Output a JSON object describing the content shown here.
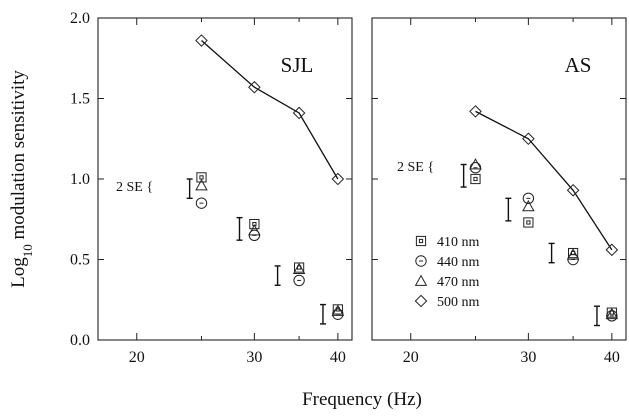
{
  "chart_data": [
    {
      "type": "scatter",
      "panel_label": "SJL",
      "xlabel": "Frequency (Hz)",
      "ylabel": "Log10 modulation sensitivity",
      "x_scale": "log",
      "xlim": [
        17.5,
        42
      ],
      "ylim": [
        0,
        2
      ],
      "x_ticks": [
        "20",
        "30",
        "40"
      ],
      "y_ticks": [
        "0.0",
        "0.5",
        "1.0",
        "1.5",
        "2.0"
      ],
      "se_label": "2 SE",
      "series": [
        {
          "name": "410 nm",
          "marker": "square",
          "x": [
            25,
            30,
            35,
            40
          ],
          "y": [
            1.01,
            0.72,
            0.45,
            0.19
          ]
        },
        {
          "name": "440 nm",
          "marker": "circle",
          "x": [
            25,
            30,
            35,
            40
          ],
          "y": [
            0.85,
            0.65,
            0.37,
            0.16
          ]
        },
        {
          "name": "470 nm",
          "marker": "triangle",
          "x": [
            25,
            30,
            35,
            40
          ],
          "y": [
            0.96,
            0.68,
            0.44,
            0.18
          ]
        },
        {
          "name": "500 nm",
          "marker": "diamond",
          "connected": true,
          "x": [
            25,
            30,
            35,
            40
          ],
          "y": [
            1.86,
            1.57,
            1.41,
            1.0
          ]
        }
      ],
      "error_bars": [
        {
          "x": 24,
          "low": 0.88,
          "high": 1.0
        },
        {
          "x": 28.5,
          "low": 0.62,
          "high": 0.76
        },
        {
          "x": 32.5,
          "low": 0.34,
          "high": 0.46
        },
        {
          "x": 38,
          "low": 0.1,
          "high": 0.22
        }
      ]
    },
    {
      "type": "scatter",
      "panel_label": "AS",
      "x_scale": "log",
      "xlim": [
        17.5,
        42
      ],
      "ylim": [
        0,
        2
      ],
      "x_ticks": [
        "20",
        "30",
        "40"
      ],
      "se_label": "2 SE",
      "series": [
        {
          "name": "410 nm",
          "marker": "square",
          "x": [
            25,
            30,
            35,
            40
          ],
          "y": [
            1.0,
            0.73,
            0.54,
            0.17
          ]
        },
        {
          "name": "440 nm",
          "marker": "circle",
          "x": [
            25,
            30,
            35,
            40
          ],
          "y": [
            1.07,
            0.88,
            0.5,
            0.15
          ]
        },
        {
          "name": "470 nm",
          "marker": "triangle",
          "x": [
            25,
            30,
            35,
            40
          ],
          "y": [
            1.09,
            0.83,
            0.53,
            0.16
          ]
        },
        {
          "name": "500 nm",
          "marker": "diamond",
          "connected": true,
          "x": [
            25,
            30,
            35,
            40
          ],
          "y": [
            1.42,
            1.25,
            0.93,
            0.56
          ]
        }
      ],
      "error_bars": [
        {
          "x": 24,
          "low": 0.95,
          "high": 1.09
        },
        {
          "x": 28,
          "low": 0.74,
          "high": 0.88
        },
        {
          "x": 32.5,
          "low": 0.48,
          "high": 0.6
        },
        {
          "x": 38,
          "low": 0.09,
          "high": 0.21
        }
      ]
    }
  ],
  "legend": {
    "placement": "inside bottom-left of right panel",
    "items": [
      {
        "label": "410 nm",
        "marker": "square"
      },
      {
        "label": "440 nm",
        "marker": "circle"
      },
      {
        "label": "470 nm",
        "marker": "triangle"
      },
      {
        "label": "500 nm",
        "marker": "diamond"
      }
    ]
  }
}
